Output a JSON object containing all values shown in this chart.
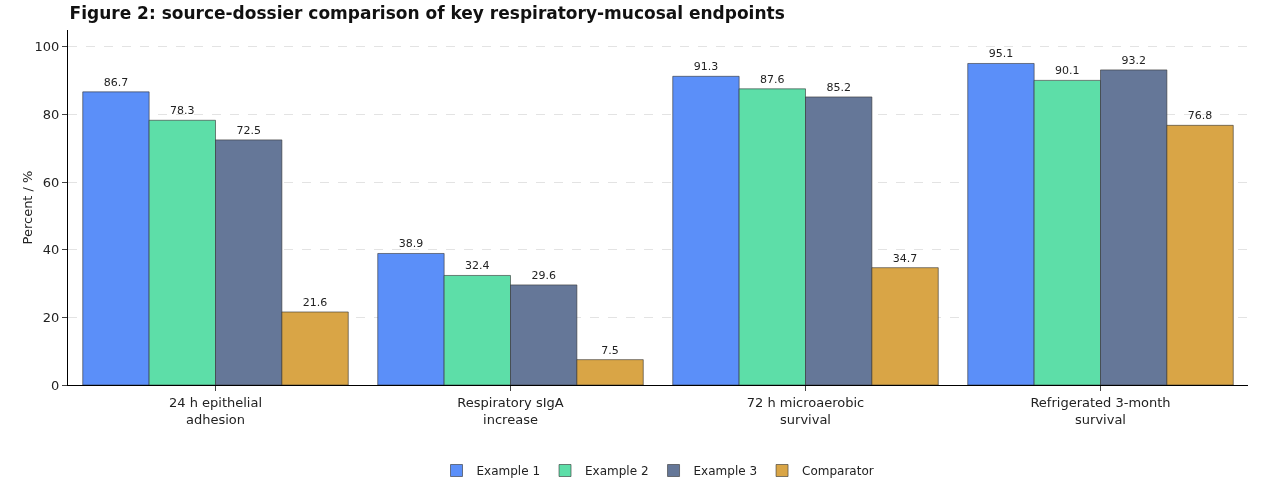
{
  "chart_data": {
    "type": "bar",
    "title": "Figure 2: source-dossier comparison of key respiratory-mucosal endpoints",
    "ylabel": "Percent / %",
    "categories": [
      "24 h epithelial\nadhesion",
      "Respiratory sIgA\nincrease",
      "72 h microaerobic\nsurvival",
      "Refrigerated 3-month\nsurvival"
    ],
    "series": [
      {
        "name": "Example 1",
        "color": "#5b8ff9",
        "values": [
          86.7,
          38.9,
          91.3,
          95.1
        ]
      },
      {
        "name": "Example 2",
        "color": "#5ddea8",
        "values": [
          78.3,
          32.4,
          87.6,
          90.1
        ]
      },
      {
        "name": "Example 3",
        "color": "#657798",
        "values": [
          72.5,
          29.6,
          85.2,
          93.2
        ]
      },
      {
        "name": "Comparator",
        "color": "#d9a546",
        "values": [
          21.6,
          7.5,
          34.7,
          76.8
        ]
      }
    ],
    "ylim": [
      0,
      105
    ],
    "yticks": [
      0,
      20,
      40,
      60,
      80,
      100
    ],
    "grid": "y",
    "legend": "bottom",
    "data_labels": true
  }
}
